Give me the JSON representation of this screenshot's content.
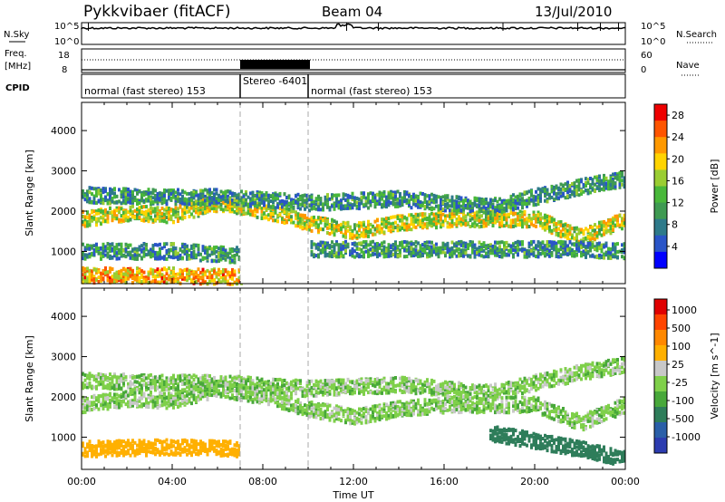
{
  "header": {
    "title": "Pykkvibaer (fitACF)",
    "beam": "Beam 04",
    "date": "13/Jul/2010"
  },
  "strips": {
    "noise": {
      "label": "N.Sky",
      "ticks_left": [
        "10^5",
        "10^0"
      ],
      "ticks_right": [
        "10^5",
        "10^0"
      ],
      "right_label": "N.Search"
    },
    "freq": {
      "label_top": "Freq.",
      "label_bottom": "[MHz]",
      "ticks_left": [
        "18",
        "8"
      ],
      "ticks_right": [
        "60",
        "0"
      ],
      "right_label": "Nave"
    },
    "cpid": {
      "label": "CPID",
      "segments": [
        {
          "text": "normal (fast stereo) 153",
          "start_h": 0.0
        },
        {
          "text": "Stereo -6401",
          "start_h": 7.0
        },
        {
          "text": "normal (fast stereo) 153",
          "start_h": 10.0
        }
      ]
    }
  },
  "xaxis": {
    "label": "Time UT",
    "ticks": [
      "00:00",
      "04:00",
      "08:00",
      "12:00",
      "16:00",
      "20:00",
      "00:00"
    ]
  },
  "chart_data": [
    {
      "type": "heatmap",
      "panel": "power",
      "ylabel": "Slant Range [km]",
      "xlim": [
        0,
        24
      ],
      "ylim": [
        200,
        4700
      ],
      "yticks": [
        1000,
        2000,
        3000,
        4000
      ],
      "colorbar": {
        "label": "Power [dB]",
        "ticks": [
          "4",
          "8",
          "12",
          "16",
          "20",
          "24",
          "28"
        ],
        "colors": [
          "#0000ff",
          "#2a55c8",
          "#2e7a8a",
          "#3f9a52",
          "#49b83a",
          "#9acd32",
          "#ffd400",
          "#ff9900",
          "#ff5500",
          "#ee0000"
        ]
      },
      "bands": [
        {
          "t": [
            0,
            2,
            4,
            6,
            8,
            10,
            12,
            14,
            16,
            18,
            20,
            22,
            24
          ],
          "range_km": [
            1800,
            1950,
            1900,
            2200,
            2000,
            1700,
            1500,
            1700,
            1800,
            1800,
            1800,
            1350,
            1800
          ],
          "level_db": 18
        },
        {
          "t": [
            0,
            3,
            6,
            10,
            14,
            18,
            22,
            24
          ],
          "range_km": [
            2400,
            2350,
            2350,
            2200,
            2300,
            2100,
            2600,
            2800
          ],
          "level_db": 9
        },
        {
          "t": [
            0,
            4,
            7,
            10,
            14,
            18,
            22,
            24
          ],
          "range_km": [
            1000,
            1000,
            900,
            1050,
            1050,
            1050,
            1050,
            1000
          ],
          "level_db": 9
        },
        {
          "t": [
            0,
            4,
            7
          ],
          "range_km": [
            400,
            400,
            350
          ],
          "level_db": 22
        }
      ],
      "gaps": [
        {
          "t_start": 7.0,
          "t_end": 10.0,
          "range_min_km": 200,
          "range_max_km": 1500
        }
      ]
    },
    {
      "type": "heatmap",
      "panel": "velocity",
      "ylabel": "Slant Range [km]",
      "xlim": [
        0,
        24
      ],
      "ylim": [
        200,
        4700
      ],
      "yticks": [
        1000,
        2000,
        3000,
        4000
      ],
      "colorbar": {
        "label": "Velocity [m s^-1]",
        "ticks": [
          "1000",
          "500",
          "100",
          "25",
          "-25",
          "-100",
          "-500",
          "-1000"
        ],
        "colors": [
          "#2c3cb0",
          "#2a5fa8",
          "#2e7d5a",
          "#48a83a",
          "#7fd04a",
          "#c8c8c8",
          "#ffb000",
          "#ff8800",
          "#ff4400",
          "#e00000"
        ]
      },
      "bands": [
        {
          "t": [
            0,
            2,
            4,
            6,
            8,
            10,
            12,
            14,
            16,
            18,
            20,
            22,
            24
          ],
          "range_km": [
            1800,
            1950,
            1900,
            2200,
            2000,
            1700,
            1500,
            1700,
            1800,
            1800,
            1800,
            1350,
            1800
          ],
          "velocity": 0
        },
        {
          "t": [
            0,
            3,
            6,
            10,
            14,
            18,
            22,
            24
          ],
          "range_km": [
            2400,
            2350,
            2350,
            2200,
            2300,
            2100,
            2600,
            2800
          ],
          "velocity": 0
        },
        {
          "t": [
            0,
            4,
            7
          ],
          "range_km": [
            700,
            750,
            700
          ],
          "velocity": -150
        },
        {
          "t": [
            18,
            20,
            22,
            24
          ],
          "range_km": [
            1100,
            900,
            700,
            450
          ],
          "velocity": 400
        }
      ],
      "gaps": [
        {
          "t_start": 7.0,
          "t_end": 10.0,
          "range_min_km": 200,
          "range_max_km": 1500
        }
      ]
    }
  ]
}
